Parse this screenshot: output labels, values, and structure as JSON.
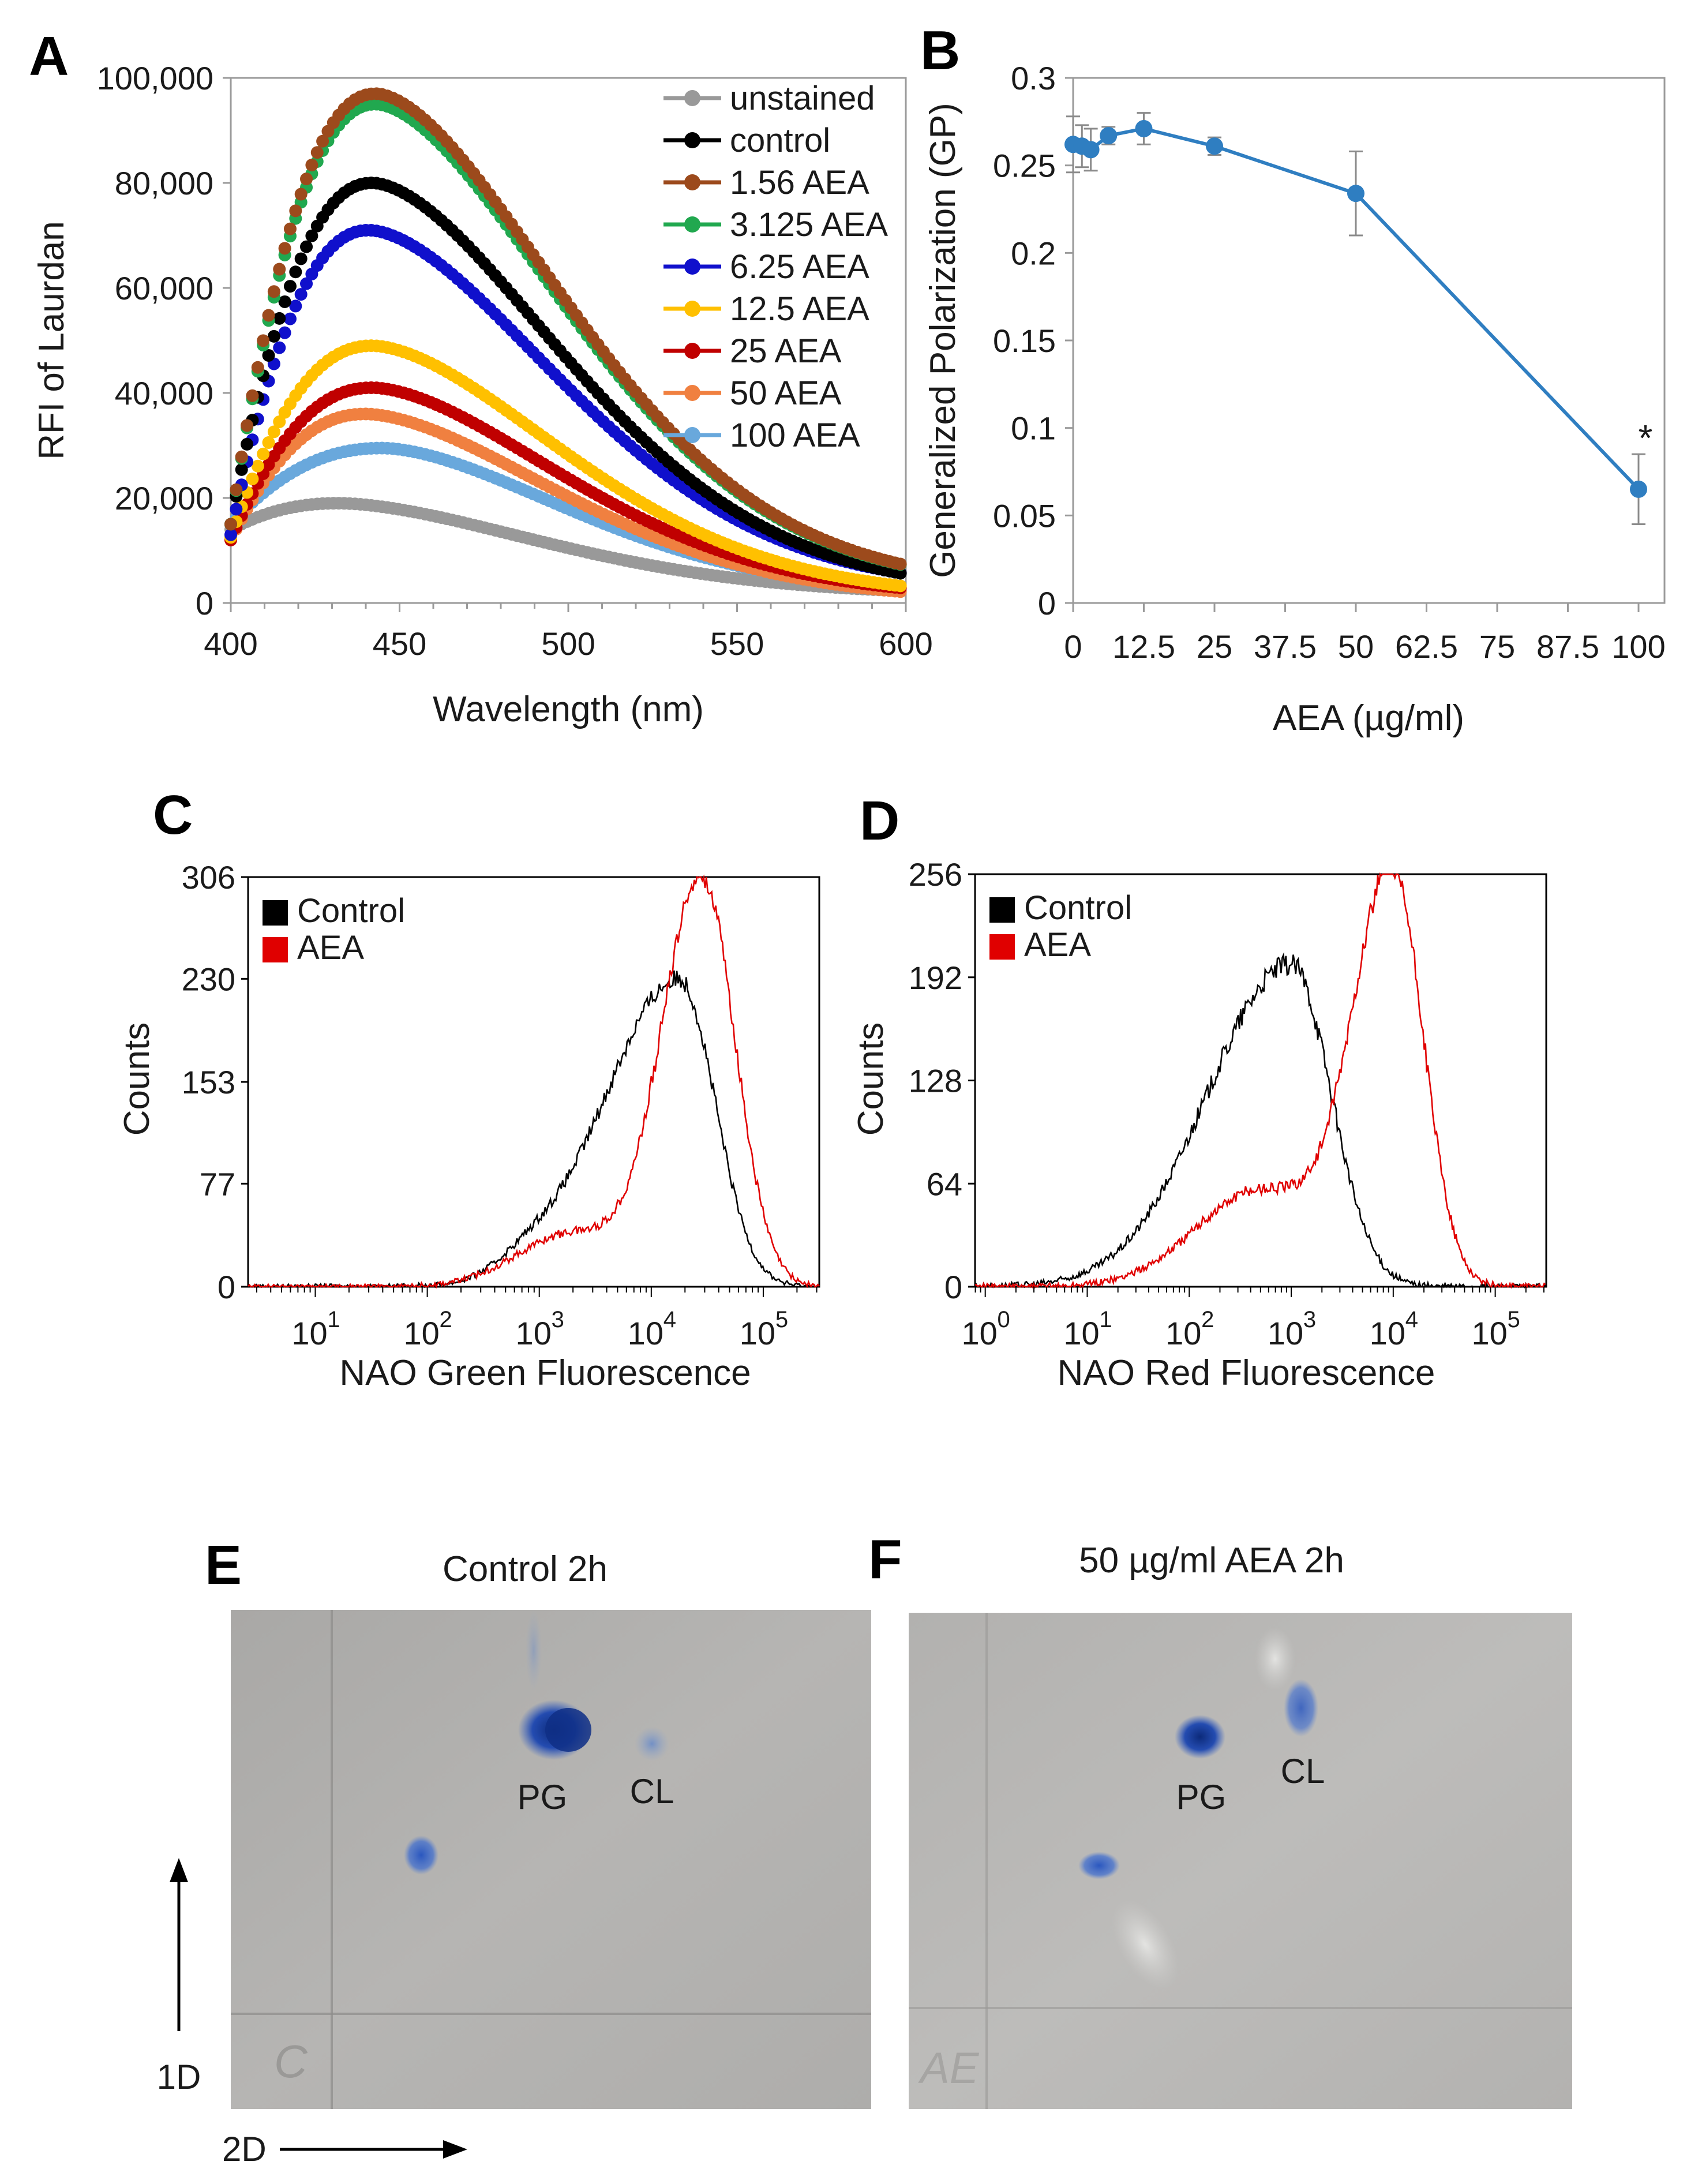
{
  "chart_data": [
    {
      "panel": "A",
      "type": "line",
      "xlabel": "Wavelength (nm)",
      "ylabel": "RFI of Laurdan",
      "xlim": [
        400,
        600
      ],
      "ylim": [
        0,
        100000
      ],
      "xticks": [
        400,
        450,
        500,
        550,
        600
      ],
      "xtick_labels": [
        "400",
        "450",
        "500",
        "550",
        "600"
      ],
      "yticks": [
        0,
        20000,
        40000,
        60000,
        80000,
        100000
      ],
      "ytick_labels": [
        "0",
        "20,000",
        "40,000",
        "60,000",
        "80,000",
        "100,000"
      ],
      "legend_position": "top-right",
      "series": [
        {
          "name": "unstained",
          "color": "#999999",
          "peak_x": 432,
          "peak": 19000,
          "start": 14000,
          "end": 1500
        },
        {
          "name": "control",
          "color": "#000000",
          "peak_x": 442,
          "peak": 80000,
          "start": 15000,
          "end": 2000
        },
        {
          "name": "1.56 AEA",
          "color": "#9c4a1c",
          "peak_x": 443,
          "peak": 97000,
          "start": 15000,
          "end": 3000
        },
        {
          "name": "3.125 AEA",
          "color": "#21a84f",
          "peak_x": 443,
          "peak": 95000,
          "start": 15000,
          "end": 3000
        },
        {
          "name": "6.25 AEA",
          "color": "#1010cc",
          "peak_x": 441,
          "peak": 71000,
          "start": 13000,
          "end": 2500
        },
        {
          "name": "12.5 AEA",
          "color": "#ffc000",
          "peak_x": 442,
          "peak": 49000,
          "start": 12500,
          "end": 1000
        },
        {
          "name": "25 AEA",
          "color": "#c00000",
          "peak_x": 442,
          "peak": 41000,
          "start": 12000,
          "end": 1000
        },
        {
          "name": "50 AEA",
          "color": "#f08040",
          "peak_x": 440,
          "peak": 36000,
          "start": 12000,
          "end": 500
        },
        {
          "name": "100 AEA",
          "color": "#69a8dc",
          "peak_x": 445,
          "peak": 29500,
          "start": 15000,
          "end": 1500
        }
      ]
    },
    {
      "panel": "B",
      "type": "line",
      "xlabel": "AEA (µg/ml)",
      "ylabel": "Generalized Polarization (GP)",
      "xlim": [
        0,
        100
      ],
      "ylim": [
        0,
        0.3
      ],
      "xticks": [
        0,
        12.5,
        25,
        37.5,
        50,
        62.5,
        75,
        87.5,
        100
      ],
      "xtick_labels": [
        "0",
        "12.5",
        "25",
        "37.5",
        "50",
        "62.5",
        "75",
        "87.5",
        "100"
      ],
      "yticks": [
        0,
        0.05,
        0.1,
        0.15,
        0.2,
        0.25,
        0.3
      ],
      "ytick_labels": [
        "0",
        "0.05",
        "0.1",
        "0.15",
        "0.2",
        "0.25",
        "0.3"
      ],
      "color": "#2f7ec1",
      "x": [
        0,
        1.56,
        3.125,
        6.25,
        12.5,
        25,
        50,
        100
      ],
      "y": [
        0.262,
        0.261,
        0.259,
        0.267,
        0.271,
        0.261,
        0.234,
        0.065
      ],
      "error": [
        0.016,
        0.012,
        0.012,
        0.005,
        0.009,
        0.005,
        0.024,
        0.02
      ],
      "annotation": "*"
    },
    {
      "panel": "C",
      "type": "area",
      "xlabel": "NAO Green Fluorescence",
      "ylabel": "Counts",
      "xscale": "log",
      "xlim_log10": [
        0.4,
        5.5
      ],
      "ylim": [
        0,
        306
      ],
      "yticks": [
        0,
        77,
        153,
        230,
        306
      ],
      "ytick_labels": [
        "0",
        "77",
        "153",
        "230",
        "306"
      ],
      "xtick_exponents": [
        1,
        2,
        3,
        4,
        5
      ],
      "xtick_base": "10",
      "legend_position": "top-left",
      "series": [
        {
          "name": "Control",
          "color": "#000000",
          "peak_log10": 4.25,
          "peak": 230
        },
        {
          "name": "AEA",
          "color": "#e00000",
          "peak_log10": 4.45,
          "peak": 306
        }
      ]
    },
    {
      "panel": "D",
      "type": "area",
      "xlabel": "NAO Red Fluorescence",
      "ylabel": "Counts",
      "xscale": "log",
      "xlim_log10": [
        -0.1,
        5.5
      ],
      "ylim": [
        0,
        256
      ],
      "yticks": [
        0,
        64,
        128,
        192,
        256
      ],
      "ytick_labels": [
        "0",
        "64",
        "128",
        "192",
        "256"
      ],
      "xtick_exponents": [
        0,
        1,
        2,
        3,
        4,
        5
      ],
      "xtick_base": "10",
      "legend_position": "top-left",
      "series": [
        {
          "name": "Control",
          "color": "#000000",
          "peak_log10": 3.0,
          "peak": 200
        },
        {
          "name": "AEA",
          "color": "#e00000",
          "peak_log10": 4.0,
          "peak": 256
        }
      ]
    }
  ],
  "panels": {
    "A": "A",
    "B": "B",
    "C": "C",
    "D": "D",
    "E": "E",
    "F": "F"
  },
  "tlc": {
    "e_title": "Control 2h",
    "f_title": "50 µg/ml AEA 2h",
    "pg_label": "PG",
    "cl_label": "CL",
    "dim1": "1D",
    "dim2": "2D",
    "plate_bg": "#b4b3b1",
    "spot_color": "#1a3f9a"
  }
}
